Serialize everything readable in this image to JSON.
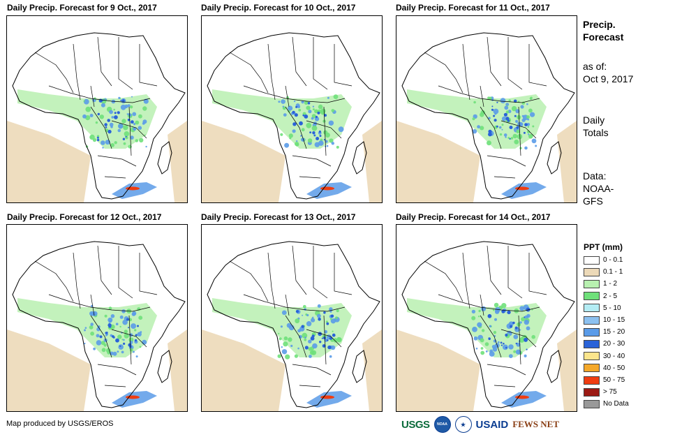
{
  "panels": [
    {
      "title": "Daily Precip. Forecast for 9 Oct., 2017"
    },
    {
      "title": "Daily Precip. Forecast for 10 Oct., 2017"
    },
    {
      "title": "Daily Precip. Forecast for 11 Oct., 2017"
    },
    {
      "title": "Daily Precip. Forecast for 12 Oct., 2017"
    },
    {
      "title": "Daily Precip. Forecast for 13 Oct., 2017"
    },
    {
      "title": "Daily Precip. Forecast for 14 Oct., 2017"
    }
  ],
  "side": {
    "title_line1": "Precip.",
    "title_line2": "Forecast",
    "asof_line1": "as of:",
    "asof_line2": "Oct 9, 2017",
    "totals_line1": "Daily",
    "totals_line2": "Totals",
    "data_line1": "Data:",
    "data_line2": "NOAA-",
    "data_line3": "GFS"
  },
  "legend": {
    "title": "PPT (mm)",
    "items": [
      {
        "label": "0 - 0.1",
        "color": "#ffffff"
      },
      {
        "label": "0.1 - 1",
        "color": "#ecd9b8"
      },
      {
        "label": "1 - 2",
        "color": "#b8f0b0"
      },
      {
        "label": "2 - 5",
        "color": "#6fe07a"
      },
      {
        "label": "5 - 10",
        "color": "#b4ecf4"
      },
      {
        "label": "10 - 15",
        "color": "#8cc1f0"
      },
      {
        "label": "15 - 20",
        "color": "#5a9be8"
      },
      {
        "label": "20 - 30",
        "color": "#2a63d8"
      },
      {
        "label": "30 - 40",
        "color": "#fbe58c"
      },
      {
        "label": "40 - 50",
        "color": "#f4a82a"
      },
      {
        "label": "50 - 75",
        "color": "#ef3d12"
      },
      {
        "label": "> 75",
        "color": "#9c1a14"
      },
      {
        "label": "No Data",
        "color": "#999999"
      }
    ]
  },
  "footer": {
    "credit": "Map produced by USGS/EROS"
  },
  "logos": {
    "usgs": "USGS",
    "noaa": "NOAA",
    "usaid": "USAID",
    "fews": "FEWS NET"
  },
  "colors": {
    "frame": "#000000",
    "dry": "#ecd9b8",
    "light_green": "#b8f0b0",
    "green": "#6fe07a",
    "blue": "#5a9be8",
    "dark_blue": "#2a63d8",
    "red": "#ef3d12",
    "border": "#000000"
  }
}
